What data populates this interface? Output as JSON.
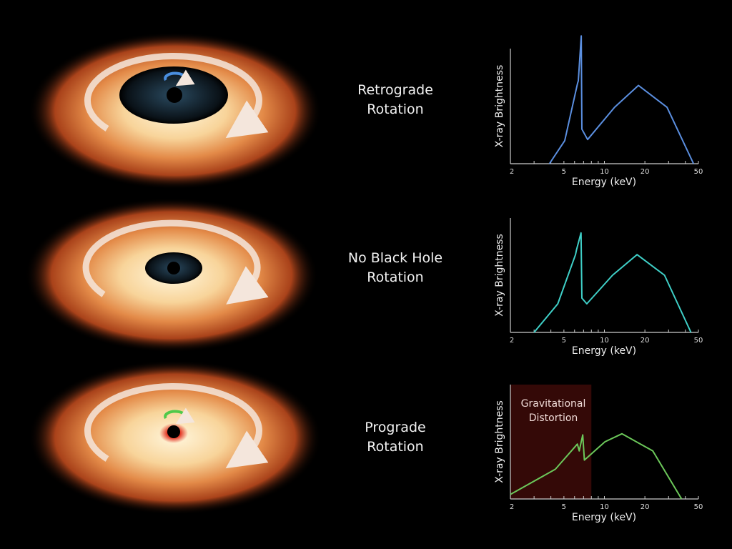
{
  "panels": [
    {
      "title_line1": "Retrograde",
      "title_line2": "Rotation",
      "spin_arrow_color": "#4a8fe0",
      "inner_region": "large"
    },
    {
      "title_line1": "No Black Hole",
      "title_line2": "Rotation",
      "inner_region": "medium"
    },
    {
      "title_line1": "Prograde",
      "title_line2": "Rotation",
      "spin_arrow_color": "#4fc94a",
      "inner_region": "small"
    }
  ],
  "annotation": {
    "line1": "Gravitational",
    "line2": "Distortion",
    "shade_color": "#3a0a08"
  },
  "chart_data": [
    {
      "type": "line",
      "xlabel": "Energy (keV)",
      "ylabel": "X-ray Brightness",
      "xscale": "log",
      "xlim": [
        2,
        50
      ],
      "xticks": [
        2,
        5,
        10,
        20,
        50
      ],
      "minor_ticks": [
        3,
        4,
        6,
        7,
        8,
        9,
        30,
        40
      ],
      "color": "#5b8fe0",
      "x": [
        3.9,
        5.07,
        6.32,
        6.4,
        6.73,
        6.8,
        7.5,
        11.9,
        17.9,
        29.2,
        46
      ],
      "y": [
        0,
        0.2,
        0.7,
        0.72,
        1.11,
        0.3,
        0.21,
        0.49,
        0.68,
        0.49,
        0
      ]
    },
    {
      "type": "line",
      "xlabel": "Energy (keV)",
      "ylabel": "X-ray Brightness",
      "xscale": "log",
      "xlim": [
        2,
        50
      ],
      "xticks": [
        2,
        5,
        10,
        20,
        50
      ],
      "minor_ticks": [
        3,
        4,
        6,
        7,
        8,
        9,
        30,
        40
      ],
      "color": "#3fd0c8",
      "x": [
        3.0,
        4.5,
        6.1,
        6.2,
        6.7,
        6.8,
        7.4,
        11.5,
        17.5,
        28,
        44
      ],
      "y": [
        0,
        0.25,
        0.68,
        0.72,
        0.87,
        0.3,
        0.25,
        0.5,
        0.68,
        0.5,
        0
      ]
    },
    {
      "type": "line",
      "xlabel": "Energy (keV)",
      "ylabel": "X-ray Brightness",
      "xscale": "log",
      "xlim": [
        2,
        50
      ],
      "xticks": [
        2,
        5,
        10,
        20,
        50
      ],
      "minor_ticks": [
        3,
        4,
        6,
        7,
        8,
        9,
        30,
        40
      ],
      "color": "#6cc85a",
      "x": [
        2,
        4.32,
        6.3,
        6.5,
        6.9,
        7.1,
        10.1,
        13.5,
        22.9,
        37.5
      ],
      "y": [
        0.04,
        0.26,
        0.48,
        0.42,
        0.56,
        0.34,
        0.5,
        0.57,
        0.42,
        0
      ],
      "shaded_xrange": [
        2,
        8
      ]
    }
  ]
}
